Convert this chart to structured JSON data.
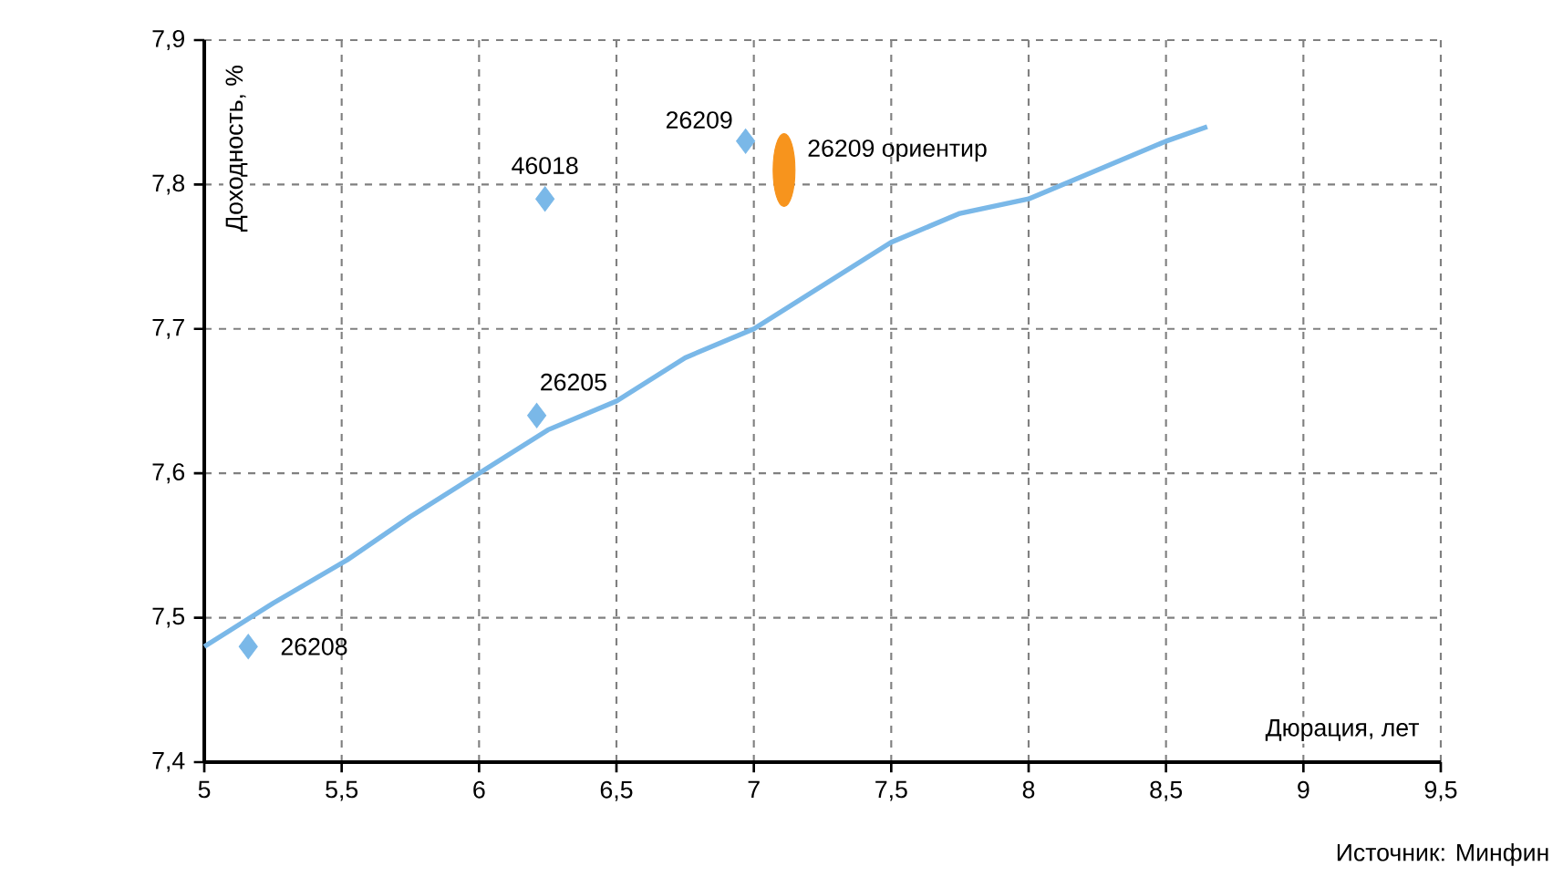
{
  "chart_data": {
    "type": "scatter",
    "xlabel": "Дюрация, лет",
    "ylabel": "Доходность, %",
    "xlim": [
      5,
      9.5
    ],
    "ylim": [
      7.4,
      7.9
    ],
    "xticks": [
      5,
      {
        "value": 5.5,
        "label": "5,5"
      },
      6,
      {
        "value": 6.5,
        "label": "6,5"
      },
      7,
      {
        "value": 7.5,
        "label": "7,5"
      },
      8,
      {
        "value": 8.5,
        "label": "8,5"
      },
      9,
      {
        "value": 9.5,
        "label": "9,5"
      }
    ],
    "yticks": [
      {
        "value": 7.4,
        "label": "7,4"
      },
      {
        "value": 7.5,
        "label": "7,5"
      },
      {
        "value": 7.6,
        "label": "7,6"
      },
      {
        "value": 7.7,
        "label": "7,7"
      },
      {
        "value": 7.8,
        "label": "7,8"
      },
      {
        "value": 7.9,
        "label": "7,9"
      }
    ],
    "grid": true,
    "legend": false,
    "series": [
      {
        "type": "line",
        "color": "#7ab8e8",
        "x": [
          5,
          5.25,
          5.52,
          5.75,
          6,
          6.25,
          6.5,
          6.75,
          7,
          7.25,
          7.5,
          7.75,
          8,
          8.25,
          8.5,
          8.65
        ],
        "values": [
          7.48,
          7.51,
          7.54,
          7.57,
          7.6,
          7.63,
          7.65,
          7.68,
          7.7,
          7.73,
          7.76,
          7.78,
          7.79,
          7.81,
          7.83,
          7.84
        ]
      },
      {
        "marker": "diamond",
        "color": "#7ab8e8",
        "x": [
          5.16,
          6.21,
          6.24,
          6.97
        ],
        "values": [
          7.48,
          7.64,
          7.79,
          7.83
        ]
      },
      {
        "marker": "circle",
        "name": "26209 ориентир",
        "color": "#f7941d",
        "x": [
          7.11
        ],
        "values": [
          7.81
        ]
      }
    ],
    "annotations": [
      {
        "text": "26208",
        "x": 5.16,
        "y": 7.48
      },
      {
        "text": "26205",
        "x": 6.21,
        "y": 7.64
      },
      {
        "text": "46018",
        "x": 6.24,
        "y": 7.79
      },
      {
        "text": "26209",
        "x": 6.97,
        "y": 7.83
      },
      "Источник: Минфин"
    ]
  }
}
